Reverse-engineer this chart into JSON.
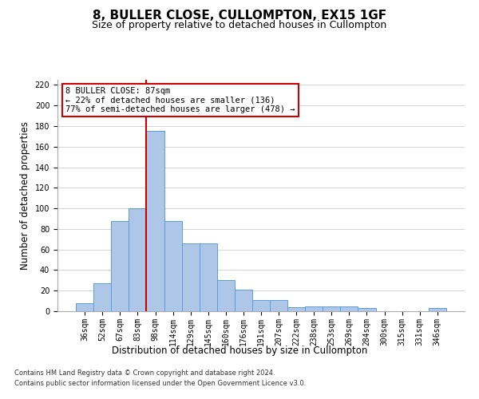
{
  "title": "8, BULLER CLOSE, CULLOMPTON, EX15 1GF",
  "subtitle": "Size of property relative to detached houses in Cullompton",
  "xlabel": "Distribution of detached houses by size in Cullompton",
  "ylabel": "Number of detached properties",
  "categories": [
    "36sqm",
    "52sqm",
    "67sqm",
    "83sqm",
    "98sqm",
    "114sqm",
    "129sqm",
    "145sqm",
    "160sqm",
    "176sqm",
    "191sqm",
    "207sqm",
    "222sqm",
    "238sqm",
    "253sqm",
    "269sqm",
    "284sqm",
    "300sqm",
    "315sqm",
    "331sqm",
    "346sqm"
  ],
  "values": [
    8,
    27,
    88,
    100,
    175,
    88,
    66,
    66,
    30,
    21,
    11,
    11,
    4,
    5,
    5,
    5,
    3,
    0,
    0,
    0,
    3
  ],
  "bar_color": "#aec6e8",
  "bar_edge_color": "#5a9fd4",
  "vline_color": "#cc0000",
  "vline_x_index": 3.5,
  "annotation_text": "8 BULLER CLOSE: 87sqm\n← 22% of detached houses are smaller (136)\n77% of semi-detached houses are larger (478) →",
  "annotation_box_color": "#ffffff",
  "annotation_box_edge": "#cc0000",
  "ylim": [
    0,
    225
  ],
  "yticks": [
    0,
    20,
    40,
    60,
    80,
    100,
    120,
    140,
    160,
    180,
    200,
    220
  ],
  "footer1": "Contains HM Land Registry data © Crown copyright and database right 2024.",
  "footer2": "Contains public sector information licensed under the Open Government Licence v3.0.",
  "bg_color": "#ffffff",
  "grid_color": "#cccccc",
  "title_fontsize": 11,
  "subtitle_fontsize": 9,
  "tick_fontsize": 7,
  "ylabel_fontsize": 8.5,
  "xlabel_fontsize": 8.5,
  "annotation_fontsize": 7.5,
  "footer_fontsize": 6
}
